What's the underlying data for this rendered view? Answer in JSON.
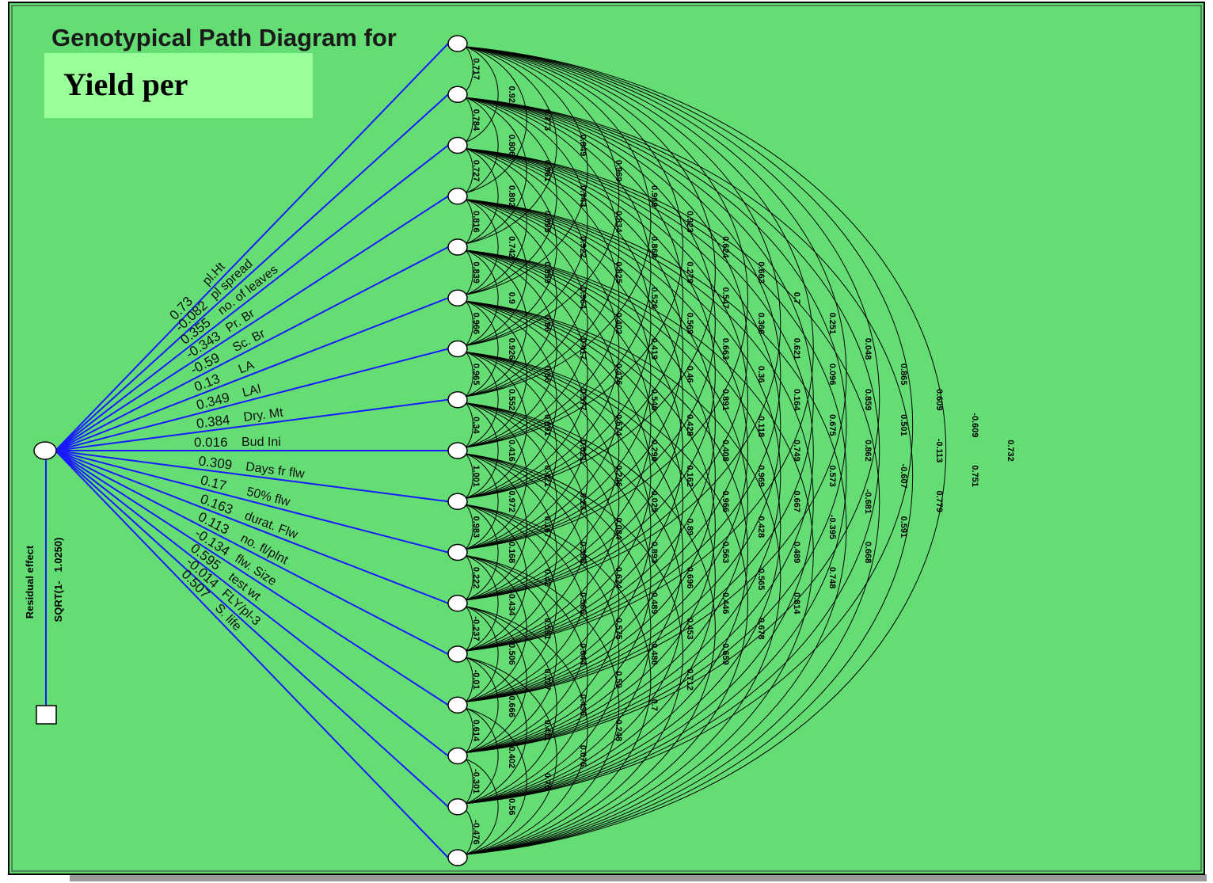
{
  "title": "Genotypical Path Diagram for",
  "subtitle": "Yield per",
  "residual": {
    "label": "Residual effect",
    "formula": "SQRT(1-   1.0250)"
  },
  "nodes": [
    {
      "name": "pl.Ht",
      "path_coefficient": 0.73
    },
    {
      "name": "pl spread",
      "path_coefficient": -0.082
    },
    {
      "name": "no. of leaves",
      "path_coefficient": 0.355
    },
    {
      "name": "Pr. Br",
      "path_coefficient": -0.343
    },
    {
      "name": "Sc. Br",
      "path_coefficient": -0.59
    },
    {
      "name": "LA",
      "path_coefficient": 0.13
    },
    {
      "name": "LAI",
      "path_coefficient": 0.349
    },
    {
      "name": "Dry. Mt",
      "path_coefficient": 0.384
    },
    {
      "name": "Bud Ini",
      "path_coefficient": 0.016
    },
    {
      "name": "Days fr flw",
      "path_coefficient": 0.309
    },
    {
      "name": "50% flw",
      "path_coefficient": 0.17
    },
    {
      "name": "durat. Flw",
      "path_coefficient": 0.163
    },
    {
      "name": "no. fl/plnt",
      "path_coefficient": 0.113
    },
    {
      "name": "flw. Size",
      "path_coefficient": -0.134
    },
    {
      "name": "test wt",
      "path_coefficient": 0.595
    },
    {
      "name": "FLY/pl-3",
      "path_coefficient": -0.014
    },
    {
      "name": "S. life",
      "path_coefficient": 0.507
    }
  ],
  "correlations": [
    [
      0.717,
      0.784,
      0.727,
      0.816,
      0.839,
      0.966,
      0.965,
      0.34,
      1.001,
      0.983,
      0.222,
      -0.237,
      -0.01,
      0.614,
      -0.301,
      -0.476
    ],
    [
      0.92,
      0.806,
      0.802,
      0.742,
      0.9,
      0.926,
      0.552,
      0.416,
      0.972,
      0.168,
      -0.434,
      0.506,
      -0.666,
      -0.402,
      0.56
    ],
    [
      0.773,
      0.861,
      0.895,
      0.859,
      0.96,
      0.66,
      0.691,
      0.421,
      0.167,
      0.42,
      0.591,
      0.327,
      0.411,
      0.75
    ],
    [
      0.849,
      0.743,
      0.922,
      0.964,
      0.417,
      0.577,
      0.621,
      0.23,
      0.388,
      0.565,
      0.644,
      0.436,
      0.075
    ],
    [
      0.969,
      0.834,
      0.825,
      0.402,
      0.476,
      0.674,
      0.246,
      -0.084,
      0.624,
      0.575,
      0.59,
      0.248
    ],
    [
      0.969,
      0.868,
      0.526,
      0.419,
      0.546,
      0.296,
      0.025,
      0.893,
      0.489,
      0.486,
      0.7
    ],
    [
      0.923,
      0.279,
      0.569,
      0.46,
      0.428,
      0.162,
      0.89,
      0.696,
      0.453,
      0.712
    ],
    [
      0.624,
      0.547,
      0.663,
      0.891,
      0.408,
      0.966,
      0.563,
      0.446,
      0.659
    ],
    [
      0.663,
      0.366,
      0.36,
      -0.118,
      0.969,
      0.428,
      -0.565,
      0.678
    ],
    [
      0.7,
      0.621,
      0.164,
      0.749,
      0.667,
      0.489,
      0.814
    ],
    [
      0.251,
      0.096,
      0.675,
      0.573,
      -0.395,
      0.748
    ],
    [
      0.048,
      0.859,
      0.862,
      -0.681,
      0.668
    ],
    [
      0.865,
      0.501,
      -0.607,
      0.591
    ],
    [
      0.609,
      -0.113,
      0.779
    ],
    [
      -0.609,
      0.751
    ],
    [
      0.732
    ]
  ]
}
